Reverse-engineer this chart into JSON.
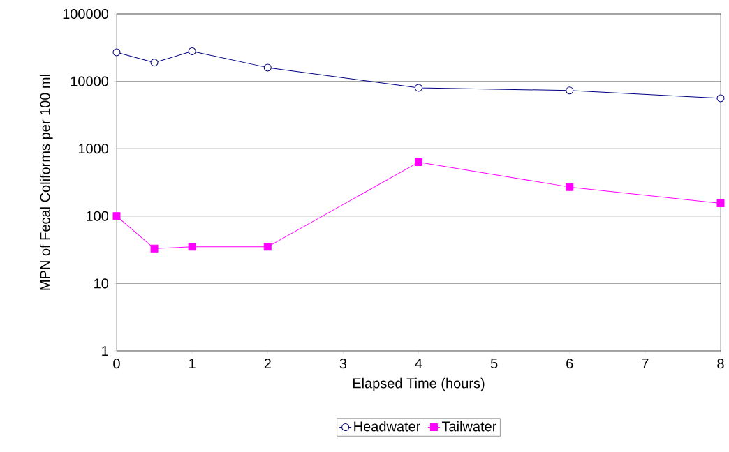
{
  "chart_data": {
    "type": "line",
    "xlabel": "Elapsed Time (hours)",
    "ylabel": "MPN of Fecal Coliforms per 100 ml",
    "x": [
      0,
      0.5,
      1,
      2,
      4,
      6,
      8
    ],
    "series": [
      {
        "name": "Headwater",
        "color": "#000080",
        "marker": "circle",
        "values": [
          27000,
          19000,
          28000,
          16000,
          8000,
          7300,
          5600
        ]
      },
      {
        "name": "Tailwater",
        "color": "#ff00ff",
        "marker": "square",
        "values": [
          100,
          33,
          35,
          35,
          630,
          270,
          155
        ]
      }
    ],
    "log": "y",
    "xlim": [
      0,
      8
    ],
    "ylim": [
      1,
      100000
    ],
    "xticks": [
      0,
      1,
      2,
      3,
      4,
      5,
      6,
      7,
      8
    ],
    "yticks": [
      1,
      10,
      100,
      1000,
      10000,
      100000
    ],
    "grid": "y",
    "legend": "bottom"
  }
}
